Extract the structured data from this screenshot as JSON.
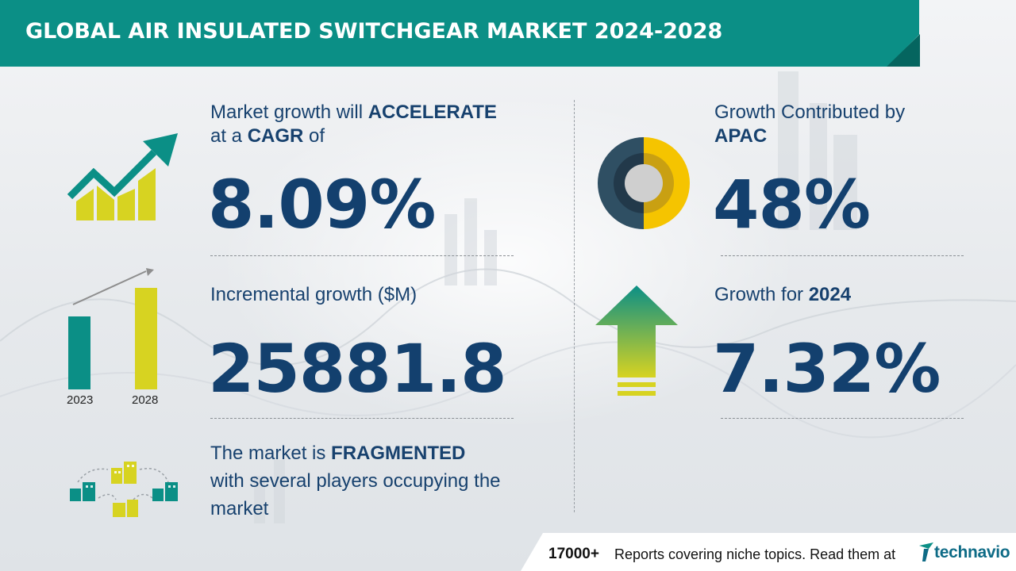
{
  "header": {
    "title": "GLOBAL AIR INSULATED SWITCHGEAR MARKET 2024-2028"
  },
  "cagr": {
    "line1_prefix": "Market growth will ",
    "line1_bold": "ACCELERATE",
    "line2_prefix": "at a ",
    "line2_bold": "CAGR",
    "line2_suffix": " of",
    "value": "8.09%"
  },
  "incremental": {
    "label": "Incremental growth ($M)",
    "value": "25881.8",
    "years": [
      "2023",
      "2028"
    ]
  },
  "fragmented": {
    "line1_prefix": "The market is ",
    "line1_bold": "FRAGMENTED",
    "line2": "with several players occupying the",
    "line3": "market"
  },
  "region": {
    "label": "Growth Contributed by",
    "region_name": "APAC",
    "value": "48%",
    "share": 48
  },
  "year_growth": {
    "label_prefix": "Growth for ",
    "year": "2024",
    "value": "7.32%"
  },
  "footer": {
    "count": "17000+",
    "text": "Reports covering niche topics. Read them at",
    "logo_text": "technavio"
  },
  "colors": {
    "teal": "#0b8f86",
    "navy": "#13406e",
    "yellow": "#d7d321",
    "donut_yellow": "#f5c400",
    "donut_dark": "#2f4f63"
  }
}
